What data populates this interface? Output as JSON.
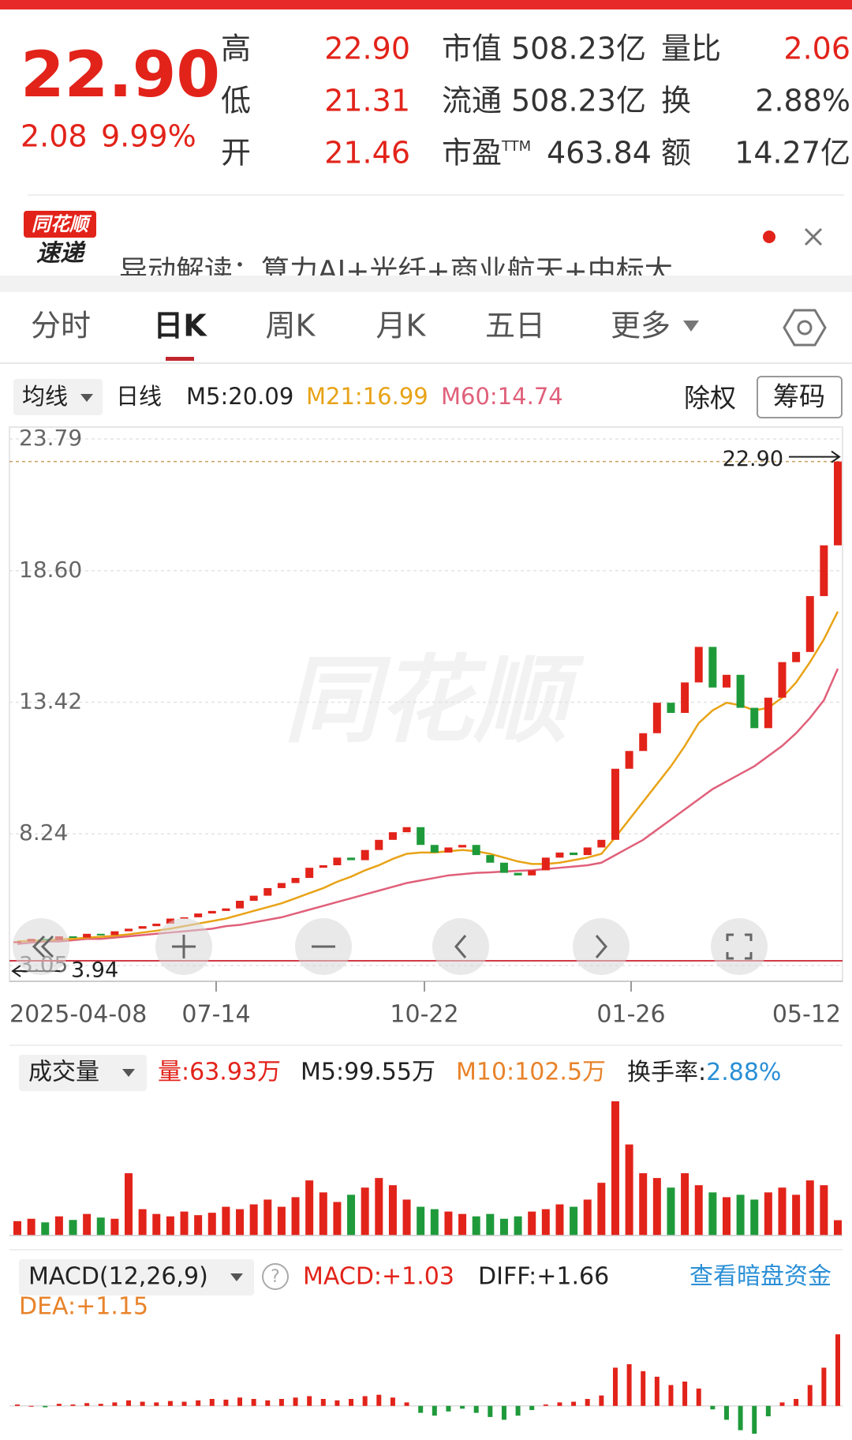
{
  "quote": {
    "price": "22.90",
    "change": "2.08",
    "change_pct": "9.99%",
    "pe_suffix": "TTM",
    "rows": [
      [
        "高",
        "22.90",
        "市值",
        "508.23亿",
        "量比",
        "2.06"
      ],
      [
        "低",
        "21.31",
        "流通",
        "508.23亿",
        "换",
        "2.88%"
      ],
      [
        "开",
        "21.46",
        "市盈",
        "463.84",
        "额",
        "14.27亿"
      ]
    ]
  },
  "banner": {
    "logo_top": "同花顺",
    "logo_bottom": "速递",
    "text": "异动解读：算力AI+光纤+商业航天+中标大"
  },
  "tabs": [
    "分时",
    "日K",
    "周K",
    "月K",
    "五日",
    "更多"
  ],
  "indicator_bar": {
    "ma_menu": "均线",
    "period": "日线",
    "m5": "M5:20.09",
    "m21": "M21:16.99",
    "m60": "M60:14.74",
    "adjust": "除权",
    "chips": "筹码"
  },
  "price_chart": {
    "watermark": "同花顺",
    "yticks": [
      23.79,
      {
        "value": 18.6,
        "label": "18.60"
      },
      13.42,
      8.24,
      3.05
    ],
    "dates": [
      "2025-04-08",
      "07-14",
      "10-22",
      "01-26",
      "05-12"
    ],
    "high": {
      "value": 22.9,
      "label": "22.90"
    },
    "low": 3.94,
    "closes": [
      4.0,
      4.1,
      4.05,
      4.2,
      4.15,
      4.3,
      4.25,
      4.4,
      4.5,
      4.6,
      4.7,
      4.9,
      4.95,
      5.1,
      5.2,
      5.3,
      5.6,
      5.8,
      6.1,
      6.3,
      6.5,
      6.9,
      7.0,
      7.3,
      7.2,
      7.6,
      8.0,
      8.3,
      8.5,
      7.8,
      7.5,
      7.7,
      7.8,
      7.4,
      7.1,
      6.7,
      6.6,
      6.8,
      7.3,
      7.5,
      7.4,
      7.7,
      8.0,
      10.8,
      11.5,
      12.2,
      13.4,
      13.0,
      14.2,
      15.6,
      14.0,
      14.5,
      13.2,
      12.4,
      13.6,
      15.0,
      15.4,
      17.6,
      19.6,
      22.9
    ],
    "ma21": [
      4.0,
      4.02,
      4.05,
      4.08,
      4.1,
      4.15,
      4.18,
      4.22,
      4.28,
      4.35,
      4.42,
      4.5,
      4.6,
      4.7,
      4.8,
      4.9,
      5.05,
      5.2,
      5.35,
      5.5,
      5.7,
      5.9,
      6.1,
      6.35,
      6.55,
      6.8,
      7.0,
      7.25,
      7.45,
      7.5,
      7.5,
      7.55,
      7.6,
      7.55,
      7.45,
      7.3,
      7.15,
      7.05,
      7.05,
      7.1,
      7.2,
      7.3,
      7.45,
      8.1,
      8.8,
      9.5,
      10.2,
      10.9,
      11.7,
      12.6,
      13.1,
      13.4,
      13.3,
      13.1,
      13.2,
      13.6,
      14.2,
      15.0,
      15.9,
      16.99
    ],
    "ma60": [
      3.9,
      3.95,
      4.0,
      4.0,
      4.05,
      4.1,
      4.1,
      4.15,
      4.2,
      4.25,
      4.3,
      4.35,
      4.4,
      4.45,
      4.5,
      4.6,
      4.65,
      4.75,
      4.85,
      4.95,
      5.1,
      5.25,
      5.4,
      5.55,
      5.7,
      5.85,
      6.0,
      6.15,
      6.3,
      6.4,
      6.5,
      6.6,
      6.65,
      6.7,
      6.72,
      6.75,
      6.78,
      6.8,
      6.85,
      6.9,
      6.95,
      7.0,
      7.1,
      7.4,
      7.7,
      8.0,
      8.4,
      8.8,
      9.2,
      9.6,
      10.0,
      10.3,
      10.6,
      10.9,
      11.3,
      11.7,
      12.2,
      12.8,
      13.5,
      14.74
    ]
  },
  "volume": {
    "menu": "成交量",
    "vol": "量:63.93万",
    "m5": "M5:99.55万",
    "m10": "M10:102.5万",
    "turnover_label": "换手率:",
    "turnover": "2.88%",
    "ylim": [
      0,
      560
    ],
    "values": [
      60,
      70,
      55,
      80,
      65,
      90,
      75,
      70,
      260,
      110,
      90,
      80,
      100,
      85,
      95,
      120,
      110,
      130,
      150,
      120,
      160,
      230,
      180,
      140,
      170,
      200,
      240,
      210,
      150,
      120,
      110,
      100,
      90,
      80,
      90,
      70,
      80,
      100,
      110,
      130,
      120,
      150,
      220,
      560,
      380,
      260,
      240,
      200,
      260,
      210,
      180,
      160,
      170,
      150,
      180,
      200,
      170,
      230,
      210,
      63.93
    ]
  },
  "macd": {
    "menu": "MACD(12,26,9)",
    "help": "?",
    "macd": "MACD:+1.03",
    "diff": "DIFF:+1.66",
    "dea": "DEA:+1.15",
    "link": "查看暗盘资金",
    "ylim": [
      -0.4,
      1.35
    ],
    "histogram": [
      0.02,
      0.0,
      -0.02,
      0.03,
      0.02,
      0.04,
      0.03,
      0.05,
      0.08,
      0.06,
      0.05,
      0.07,
      0.06,
      0.08,
      0.1,
      0.09,
      0.12,
      0.1,
      0.08,
      0.1,
      0.12,
      0.14,
      0.1,
      0.08,
      0.1,
      0.14,
      0.16,
      0.12,
      0.05,
      -0.1,
      -0.14,
      -0.08,
      -0.04,
      -0.1,
      -0.16,
      -0.2,
      -0.14,
      -0.06,
      0.02,
      0.05,
      0.06,
      0.1,
      0.15,
      0.55,
      0.6,
      0.5,
      0.42,
      0.3,
      0.35,
      0.25,
      -0.05,
      -0.2,
      -0.35,
      -0.4,
      -0.15,
      0.05,
      0.1,
      0.3,
      0.55,
      1.03
    ]
  }
}
